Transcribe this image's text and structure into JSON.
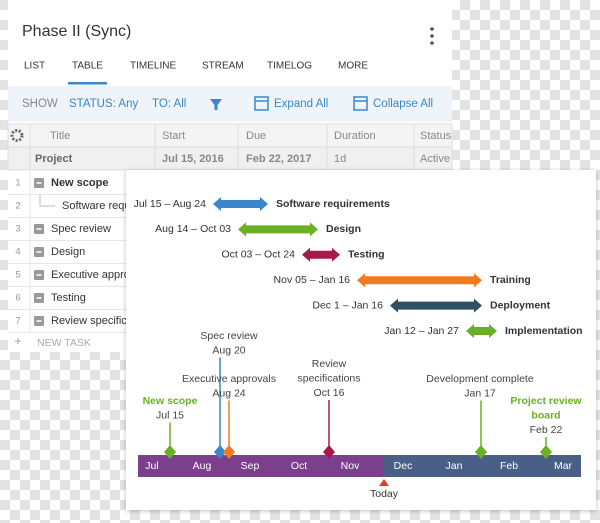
{
  "header": {
    "title": "Phase II (Sync)"
  },
  "tabs": [
    "LIST",
    "TABLE",
    "TIMELINE",
    "STREAM",
    "TIMELOG",
    "MORE"
  ],
  "active_tab": 1,
  "toolbar": {
    "show": "SHOW",
    "status": "STATUS: Any",
    "to": "TO: All",
    "expand": "Expand All",
    "collapse": "Collapse All"
  },
  "table": {
    "columns": [
      "Title",
      "Start",
      "Due",
      "Duration",
      "Status"
    ],
    "project": [
      "Project",
      "Jul 15, 2016",
      "Feb 22, 2017",
      "1d",
      "Active"
    ],
    "rows": [
      {
        "number": 1,
        "title": "New scope"
      },
      {
        "number": 2,
        "title": "Software requirements"
      },
      {
        "number": 3,
        "title": "Spec review"
      },
      {
        "number": 4,
        "title": "Design"
      },
      {
        "number": 5,
        "title": "Executive approvals"
      },
      {
        "number": 6,
        "title": "Testing"
      },
      {
        "number": 7,
        "title": "Review specifications"
      }
    ],
    "new_task": {
      "number": "+",
      "label": "NEW TASK"
    }
  },
  "timeline": {
    "bars": [
      {
        "dates": "Jul 15 – Aug 24",
        "name": "Software requirements",
        "color": "#3a86cc"
      },
      {
        "dates": "Aug 14 – Oct 03",
        "name": "Design",
        "color": "#6ab023"
      },
      {
        "dates": "Oct 03 – Oct 24",
        "name": "Testing",
        "color": "#a8194a"
      },
      {
        "dates": "Nov 05 – Jan 16",
        "name": "Training",
        "color": "#f07a22"
      },
      {
        "dates": "Dec 1 – Jan 16",
        "name": "Deployment",
        "color": "#2f4f66"
      },
      {
        "dates": "Jan 12 – Jan 27",
        "name": "Implementation",
        "color": "#6ab023"
      }
    ],
    "milestones": [
      {
        "title": [
          "New scope"
        ],
        "date": "Jul 15",
        "color": "#6ab023",
        "title_color": "#6ab023"
      },
      {
        "title": [
          "Spec review"
        ],
        "date": "Aug 20",
        "color": "#3a86cc",
        "title_color": "#444444"
      },
      {
        "title": [
          "Executive approvals"
        ],
        "date": "Aug 24",
        "color": "#f07a22",
        "title_color": "#444444"
      },
      {
        "title": [
          "Review",
          "specifications"
        ],
        "date": "Oct 16",
        "color": "#a8194a",
        "title_color": "#444444"
      },
      {
        "title": [
          "Development complete"
        ],
        "date": "Jan 17",
        "color": "#6ab023",
        "title_color": "#444444"
      },
      {
        "title": [
          "Project review",
          "board"
        ],
        "date": "Feb 22",
        "color": "#6ab023",
        "title_color": "#6ab023"
      }
    ],
    "months": [
      "Jul",
      "Aug",
      "Sep",
      "Oct",
      "Nov",
      "Dec",
      "Jan",
      "Feb",
      "Mar"
    ],
    "today": "Today"
  }
}
